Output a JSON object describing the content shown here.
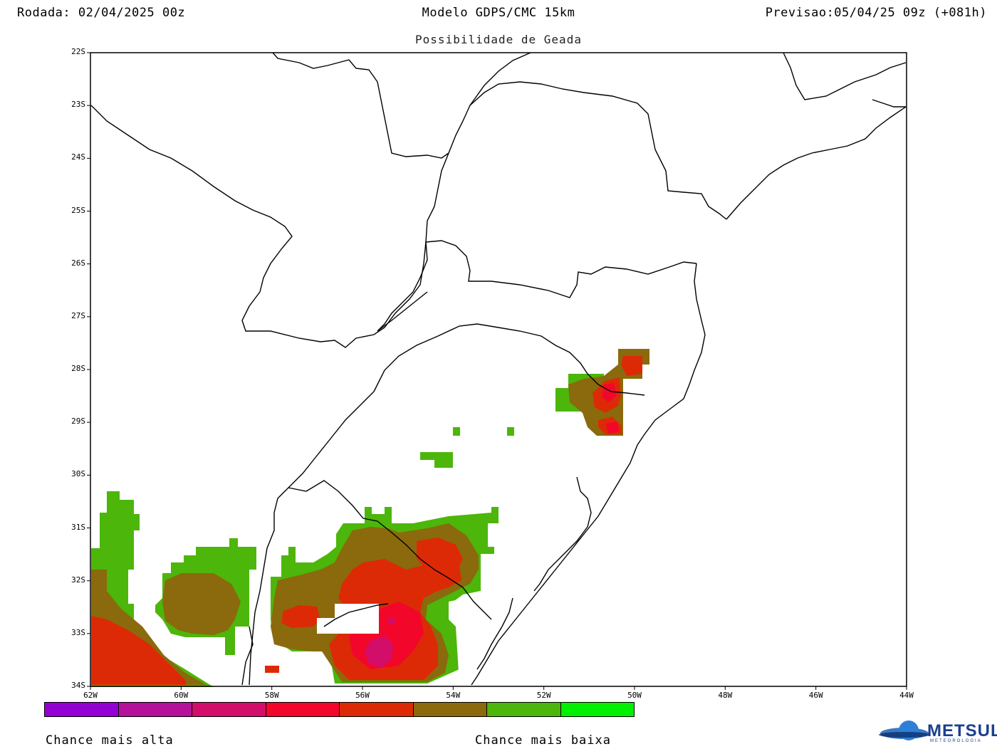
{
  "header": {
    "run": "Rodada: 02/04/2025 00z",
    "model": "Modelo GDPS/CMC 15km",
    "forecast": "Previsao:05/04/25 09z (+081h)"
  },
  "subtitle": "Possibilidade de Geada",
  "axes": {
    "lat_labels": [
      "22S",
      "23S",
      "24S",
      "25S",
      "26S",
      "27S",
      "28S",
      "29S",
      "30S",
      "31S",
      "32S",
      "33S",
      "34S"
    ],
    "lon_labels": [
      "62W",
      "60W",
      "58W",
      "56W",
      "54W",
      "52W",
      "50W",
      "48W",
      "46W",
      "44W"
    ]
  },
  "legend": {
    "colors": [
      "#9400d3",
      "#b5119a",
      "#d30d6a",
      "#f2072a",
      "#dd2a06",
      "#8a6a0c",
      "#4cb60a",
      "#00f000"
    ],
    "high_label": "Chance mais alta",
    "low_label": "Chance mais baixa"
  },
  "logo": {
    "name": "METSUL",
    "sub": "METEOROLOGIA"
  }
}
